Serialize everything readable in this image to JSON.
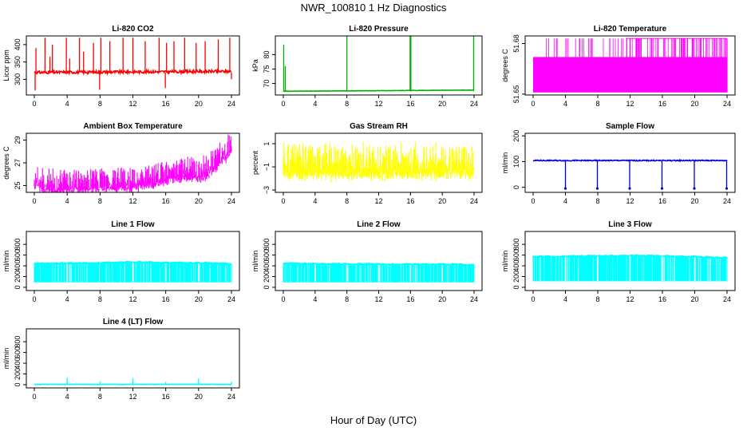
{
  "figure": {
    "title": "NWR_100810  1 Hz Diagnostics",
    "xlabel": "Hour of Day (UTC)"
  },
  "chart_data": [
    {
      "title": "Li-820 CO2",
      "type": "line",
      "ylabel": "Licor ppm",
      "color": "#ff0000",
      "xlim": [
        0,
        24
      ],
      "ylim": [
        255,
        425
      ],
      "xticks": [
        0,
        4,
        8,
        12,
        16,
        20,
        24
      ],
      "yticks": [
        300,
        350,
        400
      ],
      "baseline": [
        320,
        323
      ],
      "noise": 4,
      "spikes": [
        {
          "x": 0.1,
          "y": 268
        },
        {
          "x": 0.2,
          "y": 390
        },
        {
          "x": 1.3,
          "y": 420
        },
        {
          "x": 1.9,
          "y": 365
        },
        {
          "x": 2.2,
          "y": 400
        },
        {
          "x": 3.9,
          "y": 420
        },
        {
          "x": 4.3,
          "y": 360
        },
        {
          "x": 5.5,
          "y": 420
        },
        {
          "x": 6.0,
          "y": 380
        },
        {
          "x": 7.2,
          "y": 405
        },
        {
          "x": 7.95,
          "y": 270
        },
        {
          "x": 8.1,
          "y": 420
        },
        {
          "x": 9.2,
          "y": 410
        },
        {
          "x": 10.8,
          "y": 420
        },
        {
          "x": 12.0,
          "y": 420
        },
        {
          "x": 13.5,
          "y": 410
        },
        {
          "x": 15.2,
          "y": 420
        },
        {
          "x": 15.95,
          "y": 275
        },
        {
          "x": 16.1,
          "y": 405
        },
        {
          "x": 17.0,
          "y": 410
        },
        {
          "x": 18.3,
          "y": 420
        },
        {
          "x": 19.7,
          "y": 405
        },
        {
          "x": 20.8,
          "y": 410
        },
        {
          "x": 22.4,
          "y": 415
        },
        {
          "x": 23.8,
          "y": 420
        },
        {
          "x": 24.0,
          "y": 300
        }
      ]
    },
    {
      "title": "Li-820 Pressure",
      "type": "line",
      "ylabel": "kPa",
      "color": "#00b000",
      "xlim": [
        0,
        24
      ],
      "ylim": [
        66,
        86.5
      ],
      "xticks": [
        0,
        4,
        8,
        12,
        16,
        20,
        24
      ],
      "yticks": [
        70,
        75,
        80
      ],
      "baseline": [
        67.3,
        67.7
      ],
      "noise": 0.05,
      "spikes": [
        {
          "x": 0.05,
          "y": 83.5
        },
        {
          "x": 0.25,
          "y": 76
        },
        {
          "x": 8.0,
          "y": 86.5
        },
        {
          "x": 15.95,
          "y": 86.5
        },
        {
          "x": 16.05,
          "y": 86.5
        },
        {
          "x": 23.95,
          "y": 86.5
        }
      ]
    },
    {
      "title": "Li-820 Temperature",
      "type": "line",
      "ylabel": "degrees C",
      "color": "#ff00ff",
      "xlim": [
        0,
        24
      ],
      "ylim": [
        51.6495,
        51.6845
      ],
      "xticks": [
        0,
        4,
        8,
        12,
        16,
        20,
        24
      ],
      "yticks": [
        51.65,
        51.68
      ],
      "band": [
        51.651,
        51.672
      ],
      "upper": 51.683
    },
    {
      "title": "Ambient Box Temperature",
      "type": "area",
      "ylabel": "degrees C",
      "color": "#ff00ff",
      "xlim": [
        0,
        24
      ],
      "ylim": [
        24.4,
        29.6
      ],
      "xticks": [
        0,
        4,
        8,
        12,
        16,
        20,
        24
      ],
      "yticks": [
        25,
        27,
        29
      ],
      "trend_x": [
        0,
        1,
        2,
        3,
        4,
        6,
        8,
        10,
        12,
        14,
        16,
        18,
        20,
        21,
        22,
        23,
        24
      ],
      "trend_y": [
        26.0,
        25.5,
        25.4,
        25.3,
        25.4,
        25.5,
        25.6,
        25.6,
        25.6,
        25.8,
        26.2,
        26.5,
        26.4,
        26.7,
        27.3,
        28.1,
        28.8
      ],
      "spread": 1.0
    },
    {
      "title": "Gas Stream RH",
      "type": "area",
      "ylabel": "percent",
      "color": "#ffff00",
      "xlim": [
        0,
        24
      ],
      "ylim": [
        -3.2,
        1.9
      ],
      "xticks": [
        0,
        4,
        8,
        12,
        16,
        20,
        24
      ],
      "yticks": [
        -3,
        -1,
        1
      ],
      "trend_x": [
        0,
        24
      ],
      "trend_y": [
        -0.4,
        -0.4
      ],
      "spread": 1.4
    },
    {
      "title": "Sample Flow",
      "type": "line",
      "ylabel": "ml/min",
      "color": "#0000dd",
      "xlim": [
        0,
        24
      ],
      "ylim": [
        -20,
        210
      ],
      "xticks": [
        0,
        4,
        8,
        12,
        16,
        20,
        24
      ],
      "yticks": [
        0,
        100,
        200
      ],
      "baseline": [
        104,
        104
      ],
      "noise": 2,
      "drops": [
        4.0,
        7.95,
        11.95,
        15.95,
        19.95,
        23.95
      ],
      "drop_to": -5
    },
    {
      "title": "Line 1 Flow",
      "type": "area",
      "ylabel": "ml/min",
      "color": "#00ffff",
      "xlim": [
        0,
        24
      ],
      "ylim": [
        -60,
        1040
      ],
      "xticks": [
        0,
        4,
        8,
        12,
        16,
        20,
        24
      ],
      "yticks": [
        0,
        200,
        400,
        600,
        800
      ],
      "band_low": 100,
      "band_high": [
        450,
        455,
        460,
        470,
        480,
        470,
        465,
        460,
        450
      ],
      "gaps": [
        4.0,
        12.0,
        16.0,
        20.0
      ]
    },
    {
      "title": "Line 2 Flow",
      "type": "area",
      "ylabel": "ml/min",
      "color": "#00ffff",
      "xlim": [
        0,
        24
      ],
      "ylim": [
        -60,
        1040
      ],
      "xticks": [
        0,
        4,
        8,
        12,
        16,
        20,
        24
      ],
      "yticks": [
        0,
        200,
        400,
        600,
        800
      ],
      "band_low": 100,
      "band_high": [
        455,
        450,
        445,
        440,
        440,
        435,
        435,
        435,
        430
      ],
      "gaps": [
        4.0,
        8.0,
        12.0,
        16.0,
        20.0
      ]
    },
    {
      "title": "Line 3 Flow",
      "type": "area",
      "ylabel": "ml/min",
      "color": "#00ffff",
      "xlim": [
        0,
        24
      ],
      "ylim": [
        -60,
        1040
      ],
      "xticks": [
        0,
        4,
        8,
        12,
        16,
        20,
        24
      ],
      "yticks": [
        0,
        200,
        400,
        600,
        800
      ],
      "band_low": 120,
      "band_high": [
        580,
        585,
        590,
        595,
        600,
        595,
        585,
        575,
        560
      ],
      "gaps": [
        4.0,
        8.0,
        12.0,
        16.0,
        20.0
      ]
    },
    {
      "title": "Line 4 (LT) Flow",
      "type": "line",
      "ylabel": "ml/min",
      "color": "#00ffff",
      "xlim": [
        0,
        24
      ],
      "ylim": [
        -60,
        1040
      ],
      "xticks": [
        0,
        4,
        8,
        12,
        16,
        20,
        24
      ],
      "yticks": [
        0,
        200,
        400,
        600,
        800
      ],
      "baseline": [
        5,
        5
      ],
      "noise": 3,
      "spikes": [
        {
          "x": 4.0,
          "y": 130
        },
        {
          "x": 8.0,
          "y": 60
        },
        {
          "x": 12.0,
          "y": 120
        },
        {
          "x": 16.0,
          "y": 50
        },
        {
          "x": 20.0,
          "y": 115
        },
        {
          "x": 24.0,
          "y": 55
        }
      ]
    }
  ]
}
